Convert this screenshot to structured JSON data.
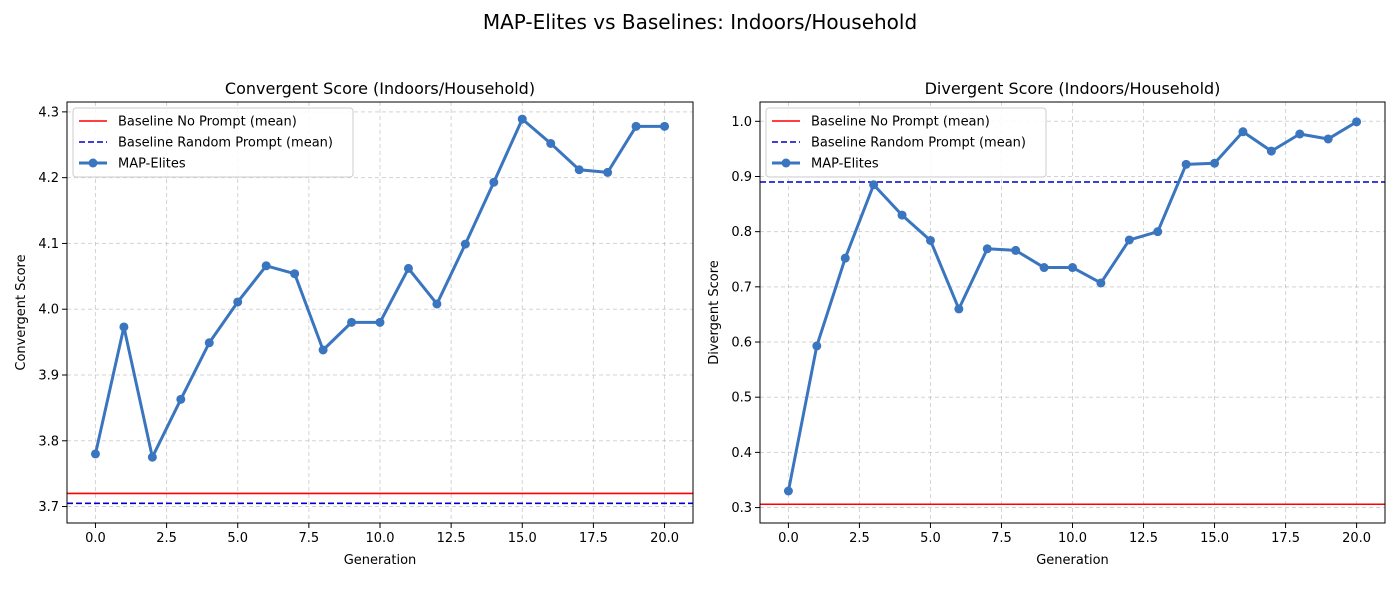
{
  "figure": {
    "suptitle": "MAP-Elites vs Baselines: Indoors/Household"
  },
  "colors": {
    "map_elites": "#3a75bf",
    "baseline_no_prompt": "#ff0000",
    "baseline_random_prompt": "#0000cc"
  },
  "chart_data": [
    {
      "type": "line",
      "title": "Convergent Score (Indoors/Household)",
      "xlabel": "Generation",
      "ylabel": "Convergent Score",
      "xlim": [
        -1,
        21
      ],
      "ylim": [
        3.675,
        4.315
      ],
      "xticks": [
        0,
        2.5,
        5,
        7.5,
        10,
        12.5,
        15,
        17.5,
        20
      ],
      "xtick_labels": [
        "0.0",
        "2.5",
        "5.0",
        "7.5",
        "10.0",
        "12.5",
        "15.0",
        "17.5",
        "20.0"
      ],
      "yticks": [
        3.7,
        3.8,
        3.9,
        4.0,
        4.1,
        4.2,
        4.3
      ],
      "ytick_labels": [
        "3.7",
        "3.8",
        "3.9",
        "4.0",
        "4.1",
        "4.2",
        "4.3"
      ],
      "grid": true,
      "legend_position": "top-left",
      "baselines": [
        {
          "name": "Baseline No Prompt (mean)",
          "value": 3.72,
          "style": "solid",
          "color": "#ff0000"
        },
        {
          "name": "Baseline Random Prompt (mean)",
          "value": 3.705,
          "style": "dashed",
          "color": "#0000cc"
        }
      ],
      "series": [
        {
          "name": "MAP-Elites",
          "x": [
            0,
            1,
            2,
            3,
            4,
            5,
            6,
            7,
            8,
            9,
            10,
            11,
            12,
            13,
            14,
            15,
            16,
            17,
            18,
            19,
            20
          ],
          "y": [
            3.78,
            3.973,
            3.775,
            3.863,
            3.949,
            4.011,
            4.066,
            4.054,
            3.938,
            3.98,
            3.98,
            4.062,
            4.008,
            4.099,
            4.193,
            4.289,
            4.252,
            4.212,
            4.208,
            4.278,
            4.278
          ]
        }
      ]
    },
    {
      "type": "line",
      "title": "Divergent Score (Indoors/Household)",
      "xlabel": "Generation",
      "ylabel": "Divergent Score",
      "xlim": [
        -1,
        21
      ],
      "ylim": [
        0.272,
        1.035
      ],
      "xticks": [
        0,
        2.5,
        5,
        7.5,
        10,
        12.5,
        15,
        17.5,
        20
      ],
      "xtick_labels": [
        "0.0",
        "2.5",
        "5.0",
        "7.5",
        "10.0",
        "12.5",
        "15.0",
        "17.5",
        "20.0"
      ],
      "yticks": [
        0.3,
        0.4,
        0.5,
        0.6,
        0.7,
        0.8,
        0.9,
        1.0
      ],
      "ytick_labels": [
        "0.3",
        "0.4",
        "0.5",
        "0.6",
        "0.7",
        "0.8",
        "0.9",
        "1.0"
      ],
      "grid": true,
      "legend_position": "top-left",
      "baselines": [
        {
          "name": "Baseline No Prompt (mean)",
          "value": 0.306,
          "style": "solid",
          "color": "#ff0000"
        },
        {
          "name": "Baseline Random Prompt (mean)",
          "value": 0.89,
          "style": "dashed",
          "color": "#0000cc"
        }
      ],
      "series": [
        {
          "name": "MAP-Elites",
          "x": [
            0,
            1,
            2,
            3,
            4,
            5,
            6,
            7,
            8,
            9,
            10,
            11,
            12,
            13,
            14,
            15,
            16,
            17,
            18,
            19,
            20
          ],
          "y": [
            0.33,
            0.593,
            0.752,
            0.885,
            0.83,
            0.784,
            0.66,
            0.769,
            0.766,
            0.735,
            0.735,
            0.707,
            0.785,
            0.8,
            0.922,
            0.924,
            0.981,
            0.946,
            0.977,
            0.968,
            0.999
          ]
        }
      ]
    }
  ]
}
